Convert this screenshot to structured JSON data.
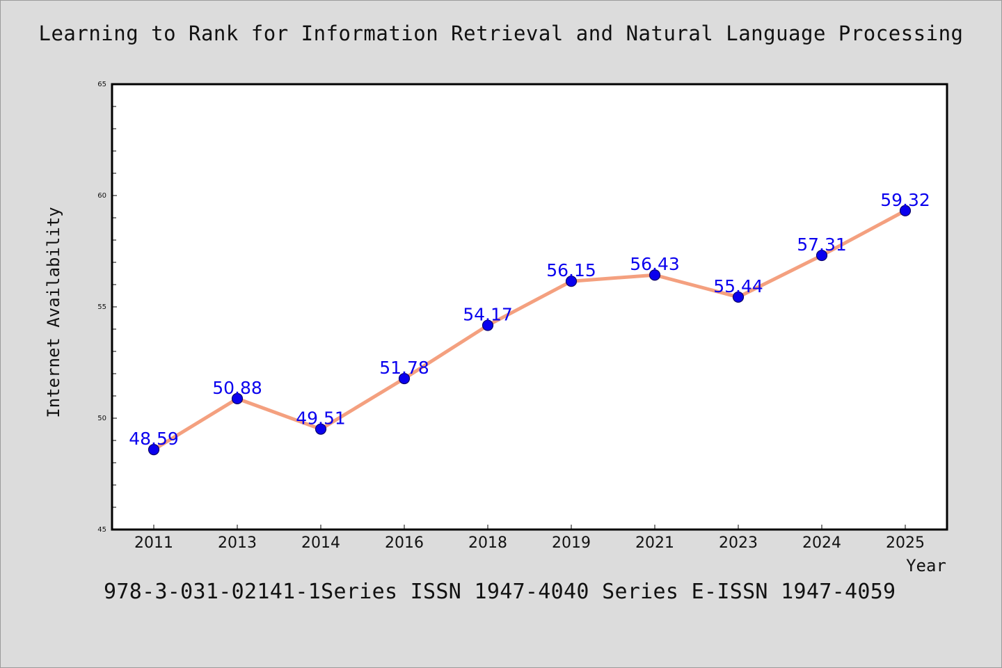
{
  "title": "Learning to Rank for Information Retrieval and Natural Language Processing",
  "footer": "978-3-031-02141-1Series ISSN 1947-4040 Series E-ISSN 1947-4059",
  "chart_data": {
    "type": "line",
    "title": "Learning to Rank for Information Retrieval and Natural Language Processing",
    "xlabel": "Year",
    "ylabel": "Internet Availability",
    "categories": [
      "2011",
      "2013",
      "2014",
      "2016",
      "2018",
      "2019",
      "2021",
      "2023",
      "2024",
      "2025"
    ],
    "series": [
      {
        "values": [
          48.59,
          50.88,
          49.51,
          51.78,
          54.17,
          56.15,
          56.43,
          55.44,
          57.31,
          59.32
        ],
        "labels": [
          "48.59",
          "50.88",
          "49.51",
          "51.78",
          "54.17",
          "56.15",
          "56.43",
          "55.44",
          "57.31",
          "59.32"
        ]
      }
    ],
    "ylim": [
      45,
      65
    ],
    "yticks": [
      "45",
      "50",
      "55",
      "60",
      "65"
    ],
    "grid": false,
    "colors": {
      "line": "#f4a07f",
      "marker": "#0a00ee",
      "marker_edge": "#0a0066",
      "data_label": "#0a00ee",
      "axis": "#000000",
      "plot_bg": "#ffffff",
      "figure_bg": "#dcdcdc"
    }
  }
}
